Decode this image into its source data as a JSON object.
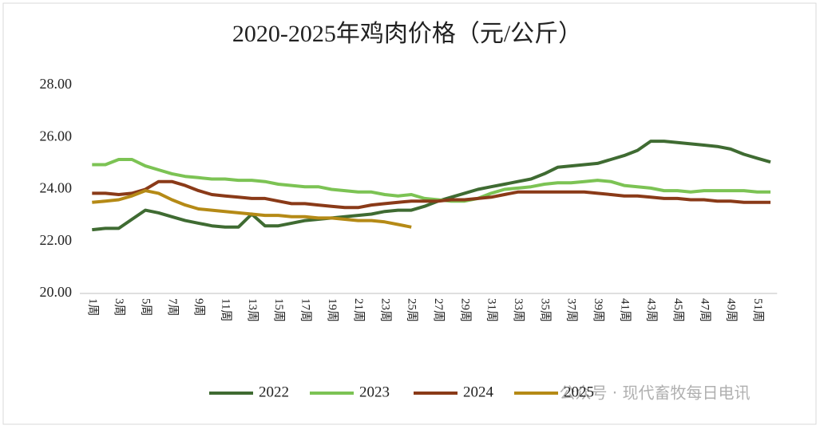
{
  "chart_data": {
    "type": "line",
    "title": "2020-2025年鸡肉价格（元/公斤）",
    "categories": [
      "1周",
      null,
      "3周",
      null,
      "5周",
      null,
      "7周",
      null,
      "9周",
      null,
      "11周",
      null,
      "13周",
      null,
      "15周",
      null,
      "17周",
      null,
      "19周",
      null,
      "21周",
      null,
      "23周",
      null,
      "25周",
      null,
      "27周",
      null,
      "29周",
      null,
      "31周",
      null,
      "33周",
      null,
      "35周",
      null,
      "37周",
      null,
      "39周",
      null,
      "41周",
      null,
      "43周",
      null,
      "45周",
      null,
      "47周",
      null,
      "49周",
      null,
      "51周",
      null
    ],
    "series": [
      {
        "name": "2022",
        "color": "#3f6b32",
        "values": [
          22.45,
          22.5,
          22.5,
          22.85,
          23.2,
          23.1,
          22.95,
          22.8,
          22.7,
          22.6,
          22.55,
          22.55,
          23.05,
          22.6,
          22.6,
          22.7,
          22.8,
          22.85,
          22.9,
          22.95,
          23.0,
          23.05,
          23.15,
          23.2,
          23.2,
          23.35,
          23.55,
          23.7,
          23.85,
          24.0,
          24.1,
          24.2,
          24.3,
          24.4,
          24.6,
          24.85,
          24.9,
          24.95,
          25.0,
          25.15,
          25.3,
          25.5,
          25.85,
          25.85,
          25.8,
          25.75,
          25.7,
          25.65,
          25.55,
          25.35,
          25.2,
          25.05
        ]
      },
      {
        "name": "2023",
        "color": "#7cc354",
        "values": [
          24.95,
          24.95,
          25.15,
          25.15,
          24.9,
          24.75,
          24.6,
          24.5,
          24.45,
          24.4,
          24.4,
          24.35,
          24.35,
          24.3,
          24.2,
          24.15,
          24.1,
          24.1,
          24.0,
          23.95,
          23.9,
          23.9,
          23.8,
          23.75,
          23.8,
          23.65,
          23.6,
          23.55,
          23.55,
          23.65,
          23.85,
          24.0,
          24.05,
          24.1,
          24.2,
          24.25,
          24.25,
          24.3,
          24.35,
          24.3,
          24.15,
          24.1,
          24.05,
          23.95,
          23.95,
          23.9,
          23.95,
          23.95,
          23.95,
          23.95,
          23.9,
          23.9
        ]
      },
      {
        "name": "2024",
        "color": "#8a3a18",
        "values": [
          23.85,
          23.85,
          23.8,
          23.85,
          24.0,
          24.3,
          24.3,
          24.15,
          23.95,
          23.8,
          23.75,
          23.7,
          23.65,
          23.65,
          23.55,
          23.45,
          23.45,
          23.4,
          23.35,
          23.3,
          23.3,
          23.4,
          23.45,
          23.5,
          23.55,
          23.55,
          23.55,
          23.6,
          23.6,
          23.65,
          23.7,
          23.8,
          23.9,
          23.9,
          23.9,
          23.9,
          23.9,
          23.9,
          23.85,
          23.8,
          23.75,
          23.75,
          23.7,
          23.65,
          23.65,
          23.6,
          23.6,
          23.55,
          23.55,
          23.5,
          23.5,
          23.5
        ]
      },
      {
        "name": "2025",
        "color": "#b58a16",
        "values": [
          23.5,
          23.55,
          23.6,
          23.75,
          23.95,
          23.85,
          23.6,
          23.4,
          23.25,
          23.2,
          23.15,
          23.1,
          23.05,
          23.0,
          23.0,
          22.95,
          22.95,
          22.9,
          22.9,
          22.85,
          22.8,
          22.8,
          22.75,
          22.65,
          22.55,
          null,
          null,
          null,
          null,
          null,
          null,
          null,
          null,
          null,
          null,
          null,
          null,
          null,
          null,
          null,
          null,
          null,
          null,
          null,
          null,
          null,
          null,
          null,
          null,
          null,
          null,
          null
        ]
      }
    ],
    "ylim": [
      20,
      28
    ],
    "yticks": [
      {
        "value": 20,
        "label": "20.00"
      },
      {
        "value": 22,
        "label": "22.00"
      },
      {
        "value": 24,
        "label": "24.00"
      },
      {
        "value": 26,
        "label": "26.00"
      },
      {
        "value": 28,
        "label": "28.00"
      }
    ],
    "grid": false,
    "legend": "bottom",
    "watermark": "公众号 · 现代畜牧每日电讯"
  }
}
